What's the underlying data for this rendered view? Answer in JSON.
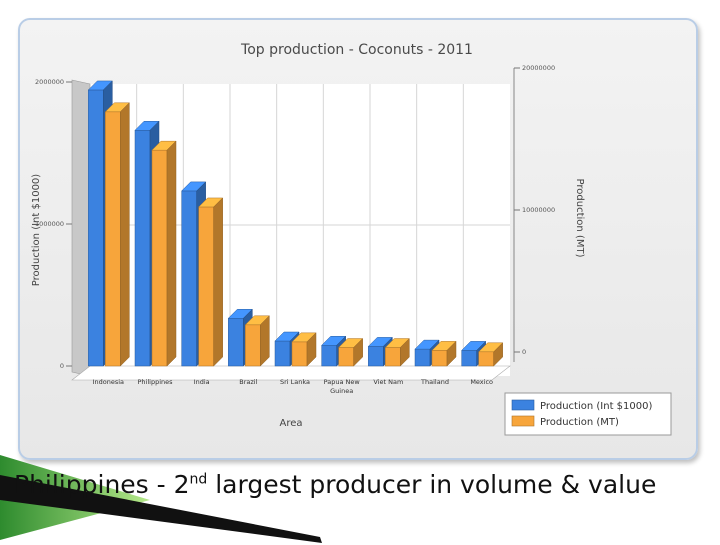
{
  "chart_data": {
    "type": "bar",
    "title": "Top production - Coconuts - 2011",
    "xlabel": "Area",
    "ylabel": "Production (Int $1000)",
    "y2label": "Production (MT)",
    "categories": [
      "Indonesia",
      "Philippines",
      "India",
      "Brazil",
      "Sri Lanka",
      "Papua New Guinea",
      "Viet Nam",
      "Thailand",
      "Mexico"
    ],
    "series": [
      {
        "name": "Production (Int $1000)",
        "axis": "left",
        "color": "#3b82e0",
        "values": [
          1944000,
          1660000,
          1233000,
          336000,
          176000,
          146000,
          138000,
          119000,
          110000
        ]
      },
      {
        "name": "Production (MT)",
        "axis": "right",
        "color": "#f7a53b",
        "values": [
          17900000,
          15200000,
          11200000,
          2900000,
          1700000,
          1300000,
          1300000,
          1100000,
          1000000
        ]
      }
    ],
    "ylim": [
      0,
      2000000
    ],
    "y2lim": [
      0,
      20000000
    ],
    "yticks": [
      "0",
      "1000000",
      "2000000"
    ],
    "y2ticks": [
      "0",
      "10000000",
      "20000000"
    ],
    "legend_position": "bottom-right"
  },
  "caption": {
    "pre": "Philippines - 2",
    "sup": "nd",
    "post": " largest producer in  volume & value"
  }
}
